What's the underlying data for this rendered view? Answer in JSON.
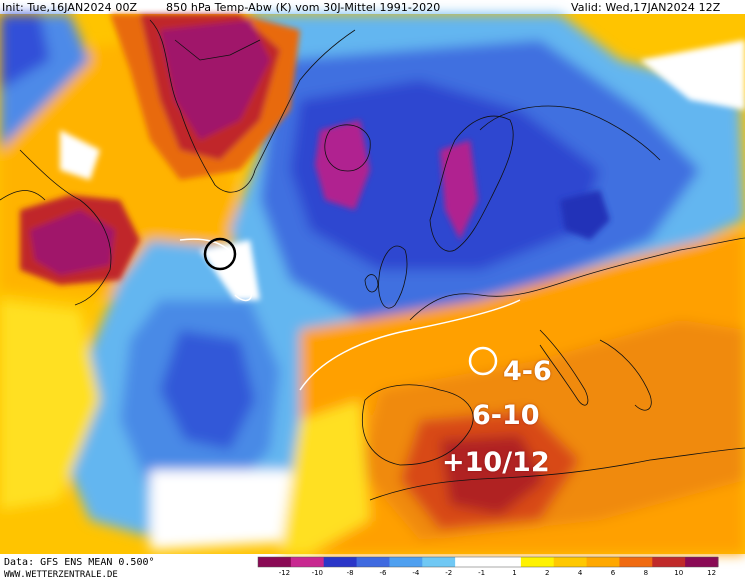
{
  "header": {
    "init": "Init: Tue,16JAN2024 00Z",
    "title": "850 hPa Temp-Abw (K) vom 30J-Mittel 1991-2020",
    "valid": "Valid: Wed,17JAN2024 12Z"
  },
  "annotations": {
    "a1": "4-6",
    "a2": "6-10",
    "a3": "+10/12"
  },
  "footer": {
    "data": "Data: GFS ENS MEAN 0.500°",
    "site": "WWW.WETTERZENTRALE.DE"
  },
  "colorbar": {
    "ticks": [
      "-12",
      "-10",
      "-8",
      "-6",
      "-4",
      "-2",
      "-1",
      "1",
      "2",
      "4",
      "6",
      "8",
      "10",
      "12"
    ],
    "colors": {
      "c_m12": "#8a0a55",
      "c_m10": "#c82890",
      "c_m8": "#2a36c8",
      "c_m6": "#3f6ae0",
      "c_m4": "#4fa0f0",
      "c_m2": "#70c8f4",
      "c_m1": "#ffffff",
      "c_p1": "#ffffff",
      "c_p2": "#fff200",
      "c_p4": "#ffc800",
      "c_p6": "#ffa800",
      "c_p8": "#f06a10",
      "c_p10": "#c02a2a",
      "c_p12": "#8a0a55"
    }
  }
}
